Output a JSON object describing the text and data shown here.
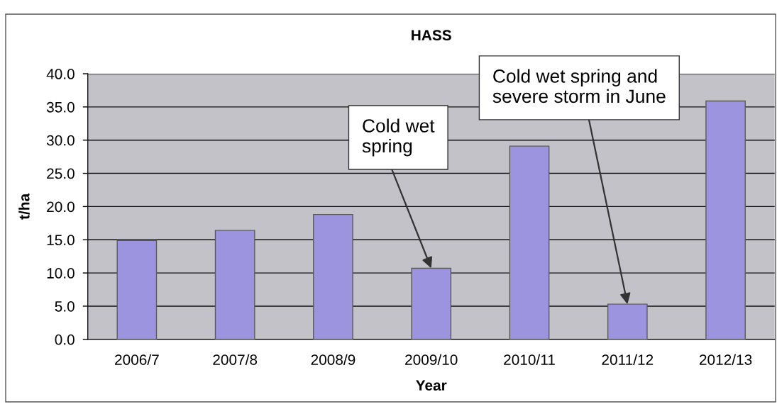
{
  "chart_data": {
    "type": "bar",
    "title": "HASS",
    "xlabel": "Year",
    "ylabel": "t/ha",
    "categories": [
      "2006/7",
      "2007/8",
      "2008/9",
      "2009/10",
      "2010/11",
      "2011/12",
      "2012/13"
    ],
    "values": [
      14.9,
      16.4,
      18.8,
      10.7,
      29.1,
      5.3,
      35.9
    ],
    "color": "#9c94de",
    "ylim": [
      0,
      40
    ],
    "yticks": [
      {
        "value": 0,
        "label": "0.0"
      },
      {
        "value": 5,
        "label": "5.0"
      },
      {
        "value": 10,
        "label": "10.0"
      },
      {
        "value": 15,
        "label": "15.0"
      },
      {
        "value": 20,
        "label": "20.0"
      },
      {
        "value": 25,
        "label": "25.0"
      },
      {
        "value": 30,
        "label": "30.0"
      },
      {
        "value": 35,
        "label": "35.0"
      },
      {
        "value": 40,
        "label": "40.0"
      }
    ],
    "grid": "y",
    "annotations": [
      {
        "text": "Cold wet\nspring",
        "x": "2009/10",
        "y": 10.7
      },
      {
        "text": "Cold wet spring and\nsevere storm in June",
        "x": "2011/12",
        "y": 5.3
      }
    ]
  }
}
